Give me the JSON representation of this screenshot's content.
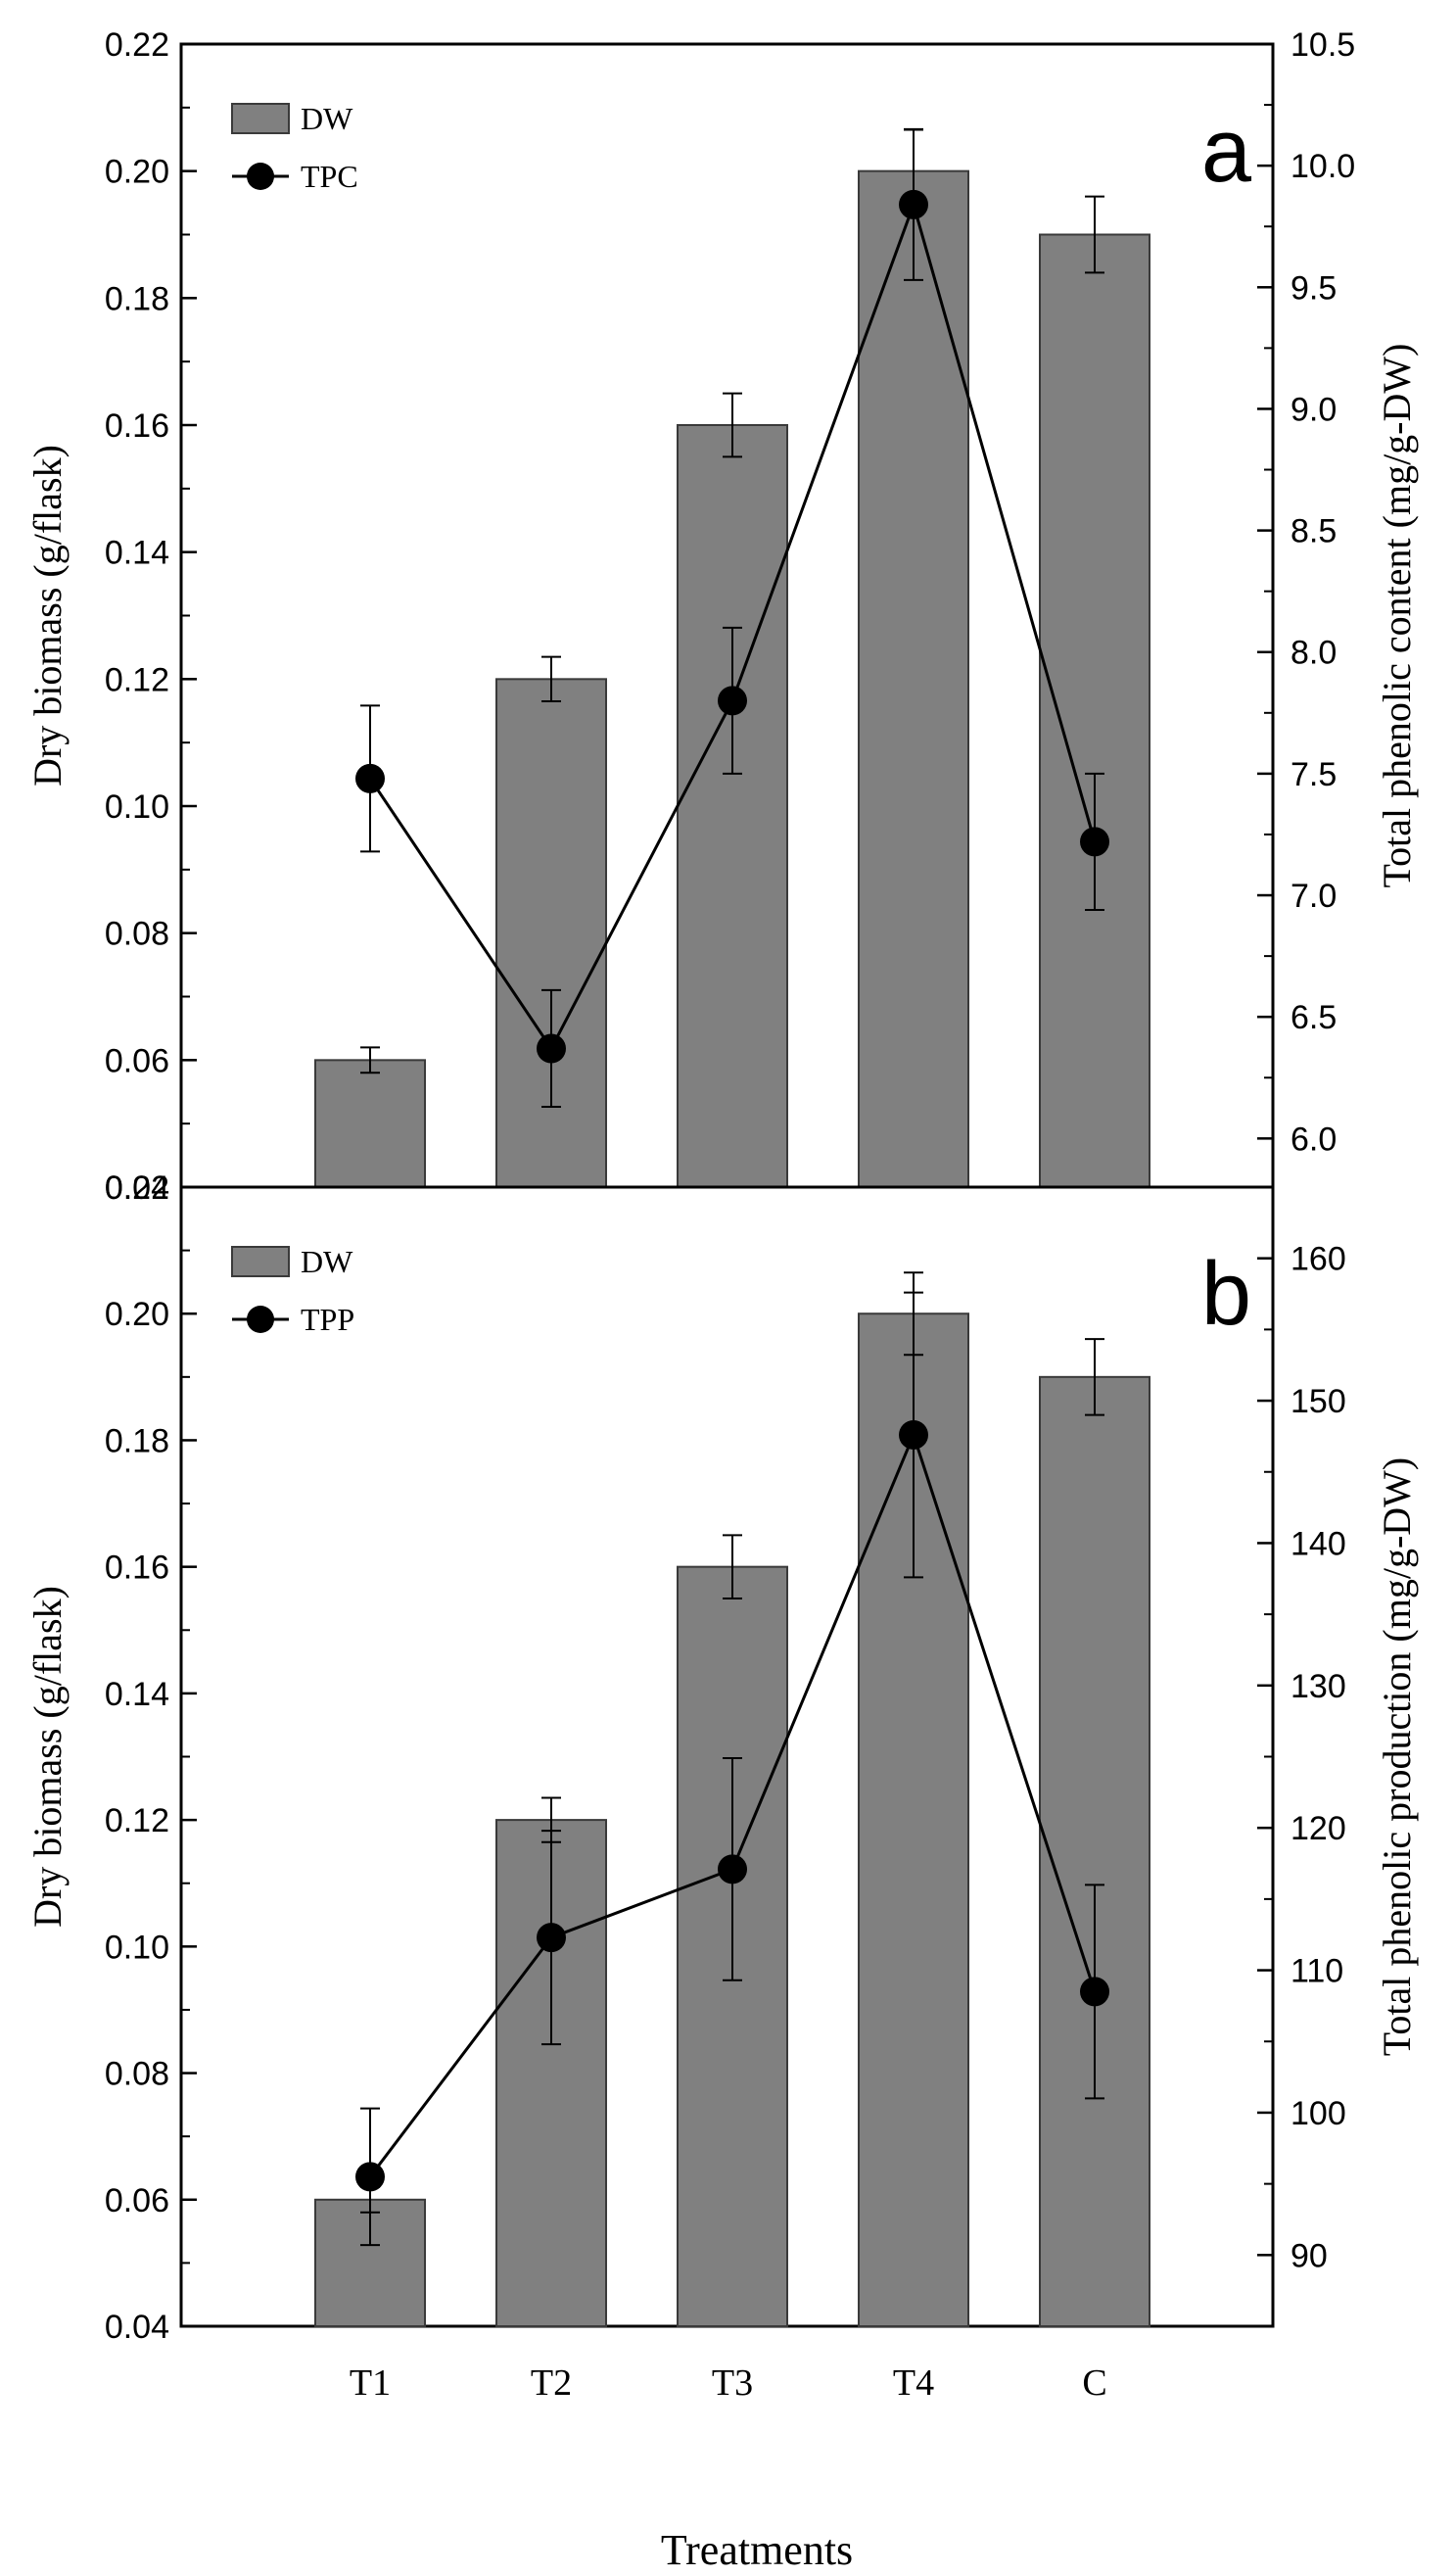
{
  "colors": {
    "bar_fill": "#808080",
    "bar_stroke": "#3a3a3a",
    "line": "#000000",
    "marker": "#000000"
  },
  "xlabel": "Treatments",
  "chart_data": [
    {
      "type": "bar",
      "panel_label": "a",
      "categories": [
        "T1",
        "T2",
        "T3",
        "T4",
        "C"
      ],
      "ylabel": "Dry biomass (g/flask)",
      "ylim": [
        0.04,
        0.22
      ],
      "yticks": [
        "0.04",
        "0.06",
        "0.08",
        "0.10",
        "0.12",
        "0.14",
        "0.16",
        "0.18",
        "0.20",
        "0.22"
      ],
      "y2label": "Total phenolic content (mg/g-DW)",
      "y2lim": [
        5.8,
        10.5
      ],
      "y2ticks": [
        "6.0",
        "6.5",
        "7.0",
        "7.5",
        "8.0",
        "8.5",
        "9.0",
        "9.5",
        "10.0",
        "10.5"
      ],
      "series": [
        {
          "name": "DW",
          "kind": "bar",
          "axis": "left",
          "values": [
            0.06,
            0.12,
            0.16,
            0.2,
            0.19
          ],
          "errors": [
            0.002,
            0.0035,
            0.005,
            0.0065,
            0.006
          ]
        },
        {
          "name": "TPC",
          "kind": "line",
          "axis": "right",
          "values": [
            7.48,
            6.37,
            7.8,
            9.84,
            7.22
          ],
          "errors": [
            0.3,
            0.24,
            0.3,
            0.31,
            0.28
          ]
        }
      ],
      "legend": [
        "DW",
        "TPC"
      ]
    },
    {
      "type": "bar",
      "panel_label": "b",
      "categories": [
        "T1",
        "T2",
        "T3",
        "T4",
        "C"
      ],
      "ylabel": "Dry biomass (g/flask)",
      "ylim": [
        0.04,
        0.22
      ],
      "yticks": [
        "0.04",
        "0.06",
        "0.08",
        "0.10",
        "0.12",
        "0.14",
        "0.16",
        "0.18",
        "0.20",
        "0.22"
      ],
      "y2label": "Total phenolic production (mg/g-DW)",
      "y2lim": [
        85,
        165
      ],
      "y2ticks": [
        "90",
        "100",
        "110",
        "120",
        "130",
        "140",
        "150",
        "160"
      ],
      "series": [
        {
          "name": "DW",
          "kind": "bar",
          "axis": "left",
          "values": [
            0.06,
            0.12,
            0.16,
            0.2,
            0.19
          ],
          "errors": [
            0.002,
            0.0035,
            0.005,
            0.0065,
            0.006
          ]
        },
        {
          "name": "TPP",
          "kind": "line",
          "axis": "right",
          "values": [
            95.5,
            112.3,
            117.1,
            147.6,
            108.5
          ],
          "errors": [
            4.8,
            7.5,
            7.8,
            10.0,
            7.5
          ]
        }
      ],
      "legend": [
        "DW",
        "TPP"
      ]
    }
  ]
}
